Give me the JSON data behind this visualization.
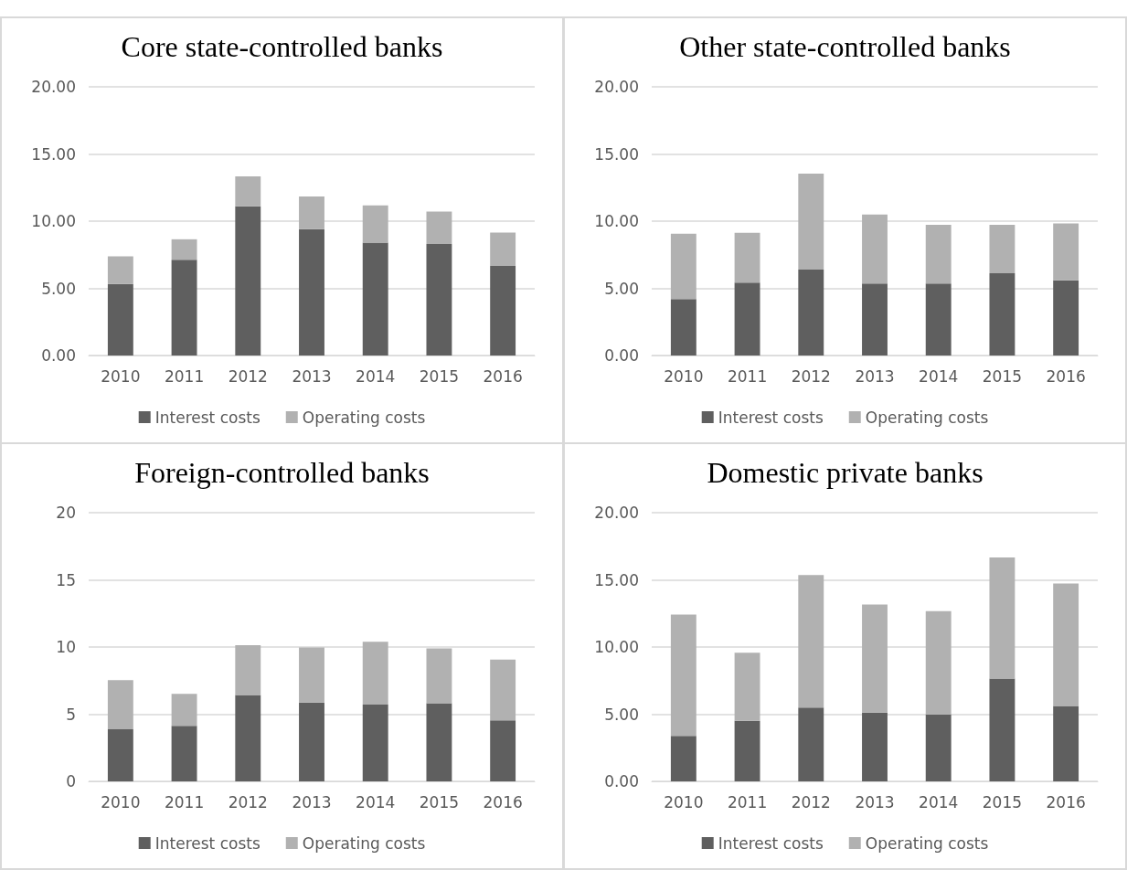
{
  "chart_data": [
    {
      "type": "bar",
      "title": "Core state-controlled banks",
      "stacked": true,
      "categories": [
        "2010",
        "2011",
        "2012",
        "2013",
        "2014",
        "2015",
        "2016"
      ],
      "series": [
        {
          "name": "Interest costs",
          "color": "#5f5f5f",
          "values": [
            5.32,
            7.13,
            11.1,
            9.4,
            8.4,
            8.3,
            6.67
          ]
        },
        {
          "name": "Operating costs",
          "color": "#b1b1b1",
          "values": [
            2.06,
            1.52,
            2.23,
            2.44,
            2.77,
            2.41,
            2.48
          ]
        }
      ],
      "ylim": [
        0,
        20
      ],
      "yticks": [
        {
          "value": 0,
          "label": "0.00"
        },
        {
          "value": 5,
          "label": "5.00"
        },
        {
          "value": 10,
          "label": "10.00"
        },
        {
          "value": 15,
          "label": "15.00"
        },
        {
          "value": 20,
          "label": "20.00"
        }
      ],
      "grid": "y",
      "legend": "bottom"
    },
    {
      "type": "bar",
      "title": "Other state-controlled banks",
      "stacked": true,
      "categories": [
        "2010",
        "2011",
        "2012",
        "2013",
        "2014",
        "2015",
        "2016"
      ],
      "series": [
        {
          "name": "Interest costs",
          "color": "#5f5f5f",
          "values": [
            4.2,
            5.42,
            6.4,
            5.35,
            5.35,
            6.12,
            5.59
          ]
        },
        {
          "name": "Operating costs",
          "color": "#b1b1b1",
          "values": [
            4.86,
            3.71,
            7.13,
            5.14,
            4.37,
            3.6,
            4.24
          ]
        }
      ],
      "ylim": [
        0,
        20
      ],
      "yticks": [
        {
          "value": 0,
          "label": "0.00"
        },
        {
          "value": 5,
          "label": "5.00"
        },
        {
          "value": 10,
          "label": "10.00"
        },
        {
          "value": 15,
          "label": "15.00"
        },
        {
          "value": 20,
          "label": "20.00"
        }
      ],
      "grid": "y",
      "legend": "bottom"
    },
    {
      "type": "bar",
      "title": "Foreign-controlled banks",
      "stacked": true,
      "categories": [
        "2010",
        "2011",
        "2012",
        "2013",
        "2014",
        "2015",
        "2016"
      ],
      "series": [
        {
          "name": "Interest costs",
          "color": "#5f5f5f",
          "values": [
            3.88,
            4.13,
            6.43,
            5.87,
            5.71,
            5.82,
            4.54
          ]
        },
        {
          "name": "Operating costs",
          "color": "#b1b1b1",
          "values": [
            3.65,
            2.38,
            3.71,
            4.1,
            4.68,
            4.07,
            4.52
          ]
        }
      ],
      "ylim": [
        0,
        20
      ],
      "yticks": [
        0,
        5,
        10,
        15,
        20
      ],
      "grid": "y",
      "legend": "bottom"
    },
    {
      "type": "bar",
      "title": "Domestic private banks",
      "stacked": true,
      "categories": [
        "2010",
        "2011",
        "2012",
        "2013",
        "2014",
        "2015",
        "2016"
      ],
      "series": [
        {
          "name": "Interest costs",
          "color": "#5f5f5f",
          "values": [
            3.39,
            4.51,
            5.5,
            5.12,
            4.98,
            7.66,
            5.61
          ]
        },
        {
          "name": "Operating costs",
          "color": "#b1b1b1",
          "values": [
            9.03,
            5.07,
            9.85,
            8.04,
            7.69,
            9.0,
            9.11
          ]
        }
      ],
      "ylim": [
        0,
        20
      ],
      "yticks": [
        {
          "value": 0,
          "label": "0.00"
        },
        {
          "value": 5,
          "label": "5.00"
        },
        {
          "value": 10,
          "label": "10.00"
        },
        {
          "value": 15,
          "label": "15.00"
        },
        {
          "value": 20,
          "label": "20.00"
        }
      ],
      "grid": "y",
      "legend": "bottom"
    }
  ]
}
